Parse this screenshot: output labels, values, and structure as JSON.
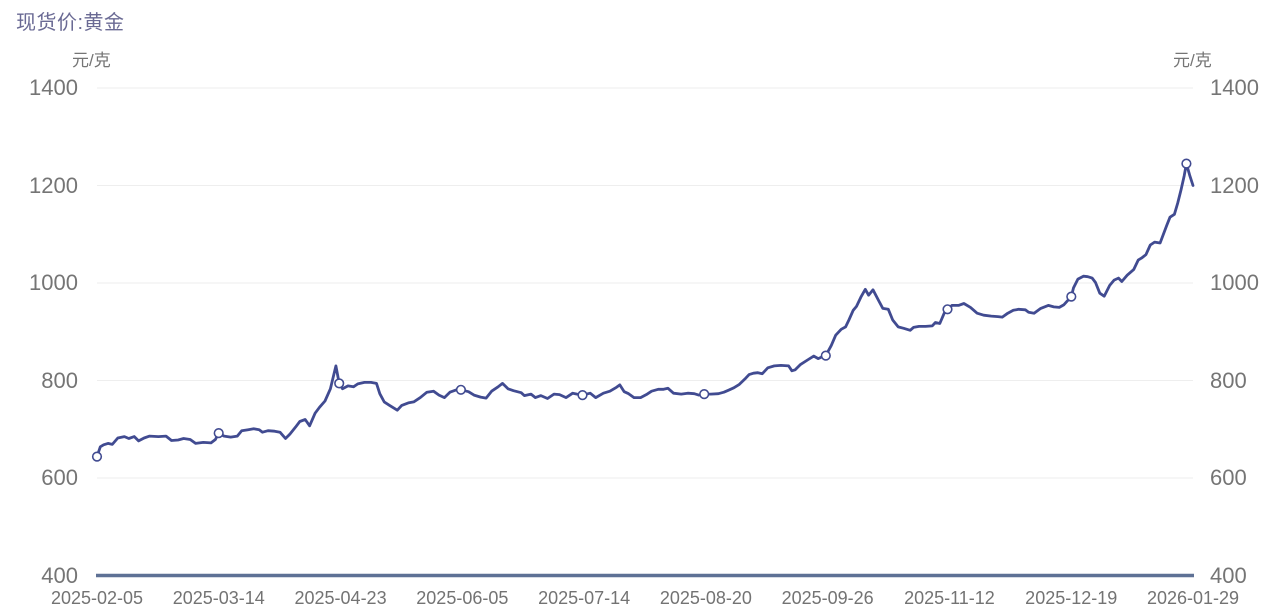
{
  "chart": {
    "title": "现货价:黄金",
    "y_unit": "元/克"
  },
  "chart_data": {
    "type": "line",
    "title": "现货价:黄金",
    "ylabel": "元/克",
    "xlabel": "",
    "ylim": [
      400,
      1400
    ],
    "y_ticks": [
      400,
      600,
      800,
      1000,
      1200,
      1400
    ],
    "x_tick_labels": [
      "2025-02-05",
      "2025-03-14",
      "2025-04-23",
      "2025-06-05",
      "2025-07-14",
      "2025-08-20",
      "2025-09-26",
      "2025-11-12",
      "2025-12-19",
      "2026-01-29"
    ],
    "grid": "horizontal-only",
    "legend": "none",
    "y_axis_sides": "both",
    "colors": {
      "line": "#414b91",
      "grid": "#eeeeee",
      "axis": "#5e7195",
      "label": "#757575",
      "title": "#6a6a94"
    },
    "series": [
      {
        "name": "现货价:黄金",
        "color": "#414b91",
        "x_format": "fraction of time axis, 0 = 2025-02-05, 1 = 2026-01-29",
        "points": [
          [
            0.0,
            644
          ],
          [
            0.003,
            664
          ],
          [
            0.006,
            668
          ],
          [
            0.01,
            671
          ],
          [
            0.014,
            669
          ],
          [
            0.019,
            682
          ],
          [
            0.025,
            685
          ],
          [
            0.029,
            681
          ],
          [
            0.034,
            685
          ],
          [
            0.038,
            676
          ],
          [
            0.043,
            682
          ],
          [
            0.048,
            686
          ],
          [
            0.056,
            685
          ],
          [
            0.063,
            686
          ],
          [
            0.068,
            677
          ],
          [
            0.074,
            678
          ],
          [
            0.079,
            681
          ],
          [
            0.085,
            679
          ],
          [
            0.09,
            671
          ],
          [
            0.097,
            673
          ],
          [
            0.104,
            672
          ],
          [
            0.108,
            679
          ],
          [
            0.111,
            692
          ],
          [
            0.116,
            686
          ],
          [
            0.122,
            684
          ],
          [
            0.128,
            686
          ],
          [
            0.132,
            697
          ],
          [
            0.138,
            699
          ],
          [
            0.143,
            701
          ],
          [
            0.148,
            699
          ],
          [
            0.151,
            694
          ],
          [
            0.156,
            697
          ],
          [
            0.162,
            696
          ],
          [
            0.167,
            694
          ],
          [
            0.172,
            681
          ],
          [
            0.176,
            690
          ],
          [
            0.181,
            704
          ],
          [
            0.185,
            716
          ],
          [
            0.19,
            720
          ],
          [
            0.194,
            707
          ],
          [
            0.199,
            733
          ],
          [
            0.203,
            745
          ],
          [
            0.208,
            758
          ],
          [
            0.213,
            783
          ],
          [
            0.218,
            830
          ],
          [
            0.221,
            794
          ],
          [
            0.224,
            783
          ],
          [
            0.229,
            789
          ],
          [
            0.234,
            787
          ],
          [
            0.238,
            793
          ],
          [
            0.244,
            796
          ],
          [
            0.25,
            796
          ],
          [
            0.255,
            794
          ],
          [
            0.258,
            773
          ],
          [
            0.262,
            756
          ],
          [
            0.267,
            749
          ],
          [
            0.274,
            739
          ],
          [
            0.278,
            749
          ],
          [
            0.284,
            754
          ],
          [
            0.289,
            756
          ],
          [
            0.295,
            765
          ],
          [
            0.301,
            776
          ],
          [
            0.307,
            778
          ],
          [
            0.312,
            770
          ],
          [
            0.317,
            765
          ],
          [
            0.322,
            776
          ],
          [
            0.328,
            781
          ],
          [
            0.332,
            781
          ],
          [
            0.339,
            777
          ],
          [
            0.344,
            770
          ],
          [
            0.35,
            766
          ],
          [
            0.355,
            764
          ],
          [
            0.36,
            778
          ],
          [
            0.366,
            787
          ],
          [
            0.37,
            794
          ],
          [
            0.375,
            783
          ],
          [
            0.38,
            779
          ],
          [
            0.387,
            775
          ],
          [
            0.39,
            769
          ],
          [
            0.396,
            772
          ],
          [
            0.4,
            765
          ],
          [
            0.405,
            769
          ],
          [
            0.411,
            763
          ],
          [
            0.417,
            772
          ],
          [
            0.422,
            771
          ],
          [
            0.428,
            765
          ],
          [
            0.434,
            774
          ],
          [
            0.438,
            772
          ],
          [
            0.443,
            770
          ],
          [
            0.45,
            774
          ],
          [
            0.455,
            765
          ],
          [
            0.462,
            774
          ],
          [
            0.468,
            778
          ],
          [
            0.474,
            786
          ],
          [
            0.477,
            791
          ],
          [
            0.481,
            777
          ],
          [
            0.485,
            773
          ],
          [
            0.49,
            765
          ],
          [
            0.496,
            765
          ],
          [
            0.502,
            772
          ],
          [
            0.506,
            778
          ],
          [
            0.512,
            782
          ],
          [
            0.517,
            782
          ],
          [
            0.521,
            784
          ],
          [
            0.526,
            774
          ],
          [
            0.533,
            772
          ],
          [
            0.539,
            774
          ],
          [
            0.545,
            773
          ],
          [
            0.549,
            770
          ],
          [
            0.554,
            772
          ],
          [
            0.56,
            772
          ],
          [
            0.567,
            773
          ],
          [
            0.572,
            776
          ],
          [
            0.576,
            780
          ],
          [
            0.581,
            785
          ],
          [
            0.586,
            792
          ],
          [
            0.592,
            805
          ],
          [
            0.595,
            812
          ],
          [
            0.599,
            815
          ],
          [
            0.603,
            816
          ],
          [
            0.607,
            814
          ],
          [
            0.612,
            826
          ],
          [
            0.618,
            830
          ],
          [
            0.624,
            831
          ],
          [
            0.631,
            830
          ],
          [
            0.634,
            820
          ],
          [
            0.637,
            822
          ],
          [
            0.642,
            833
          ],
          [
            0.649,
            843
          ],
          [
            0.654,
            850
          ],
          [
            0.658,
            845
          ],
          [
            0.661,
            848
          ],
          [
            0.665,
            851
          ],
          [
            0.67,
            872
          ],
          [
            0.674,
            893
          ],
          [
            0.679,
            905
          ],
          [
            0.683,
            910
          ],
          [
            0.686,
            924
          ],
          [
            0.69,
            944
          ],
          [
            0.693,
            952
          ],
          [
            0.697,
            971
          ],
          [
            0.701,
            987
          ],
          [
            0.704,
            975
          ],
          [
            0.708,
            986
          ],
          [
            0.713,
            965
          ],
          [
            0.717,
            948
          ],
          [
            0.722,
            946
          ],
          [
            0.726,
            924
          ],
          [
            0.731,
            910
          ],
          [
            0.736,
            907
          ],
          [
            0.742,
            903
          ],
          [
            0.745,
            909
          ],
          [
            0.75,
            911
          ],
          [
            0.756,
            911
          ],
          [
            0.762,
            912
          ],
          [
            0.765,
            919
          ],
          [
            0.769,
            917
          ],
          [
            0.773,
            938
          ],
          [
            0.776,
            946
          ],
          [
            0.78,
            954
          ],
          [
            0.786,
            954
          ],
          [
            0.791,
            958
          ],
          [
            0.797,
            950
          ],
          [
            0.803,
            938
          ],
          [
            0.809,
            934
          ],
          [
            0.816,
            932
          ],
          [
            0.822,
            931
          ],
          [
            0.826,
            930
          ],
          [
            0.831,
            938
          ],
          [
            0.836,
            944
          ],
          [
            0.841,
            946
          ],
          [
            0.847,
            945
          ],
          [
            0.85,
            940
          ],
          [
            0.855,
            938
          ],
          [
            0.861,
            948
          ],
          [
            0.868,
            954
          ],
          [
            0.873,
            951
          ],
          [
            0.878,
            950
          ],
          [
            0.882,
            955
          ],
          [
            0.889,
            972
          ],
          [
            0.891,
            990
          ],
          [
            0.895,
            1008
          ],
          [
            0.9,
            1014
          ],
          [
            0.904,
            1013
          ],
          [
            0.908,
            1010
          ],
          [
            0.911,
            1001
          ],
          [
            0.915,
            979
          ],
          [
            0.919,
            973
          ],
          [
            0.924,
            995
          ],
          [
            0.928,
            1006
          ],
          [
            0.932,
            1010
          ],
          [
            0.935,
            1003
          ],
          [
            0.94,
            1016
          ],
          [
            0.943,
            1022
          ],
          [
            0.946,
            1028
          ],
          [
            0.95,
            1047
          ],
          [
            0.953,
            1051
          ],
          [
            0.957,
            1058
          ],
          [
            0.961,
            1078
          ],
          [
            0.965,
            1084
          ],
          [
            0.97,
            1082
          ],
          [
            0.973,
            1100
          ],
          [
            0.976,
            1118
          ],
          [
            0.979,
            1135
          ],
          [
            0.983,
            1141
          ],
          [
            0.986,
            1164
          ],
          [
            0.989,
            1190
          ],
          [
            0.992,
            1220
          ],
          [
            0.994,
            1245
          ],
          [
            0.997,
            1221
          ],
          [
            1.0,
            1200
          ]
        ],
        "markers_note": "open-circle markers drawn at each x tick date",
        "markers": [
          [
            0.0,
            644
          ],
          [
            0.111,
            692
          ],
          [
            0.221,
            794
          ],
          [
            0.332,
            781
          ],
          [
            0.443,
            770
          ],
          [
            0.554,
            772
          ],
          [
            0.665,
            851
          ],
          [
            0.776,
            946
          ],
          [
            0.889,
            972
          ],
          [
            0.994,
            1245
          ]
        ]
      }
    ]
  }
}
